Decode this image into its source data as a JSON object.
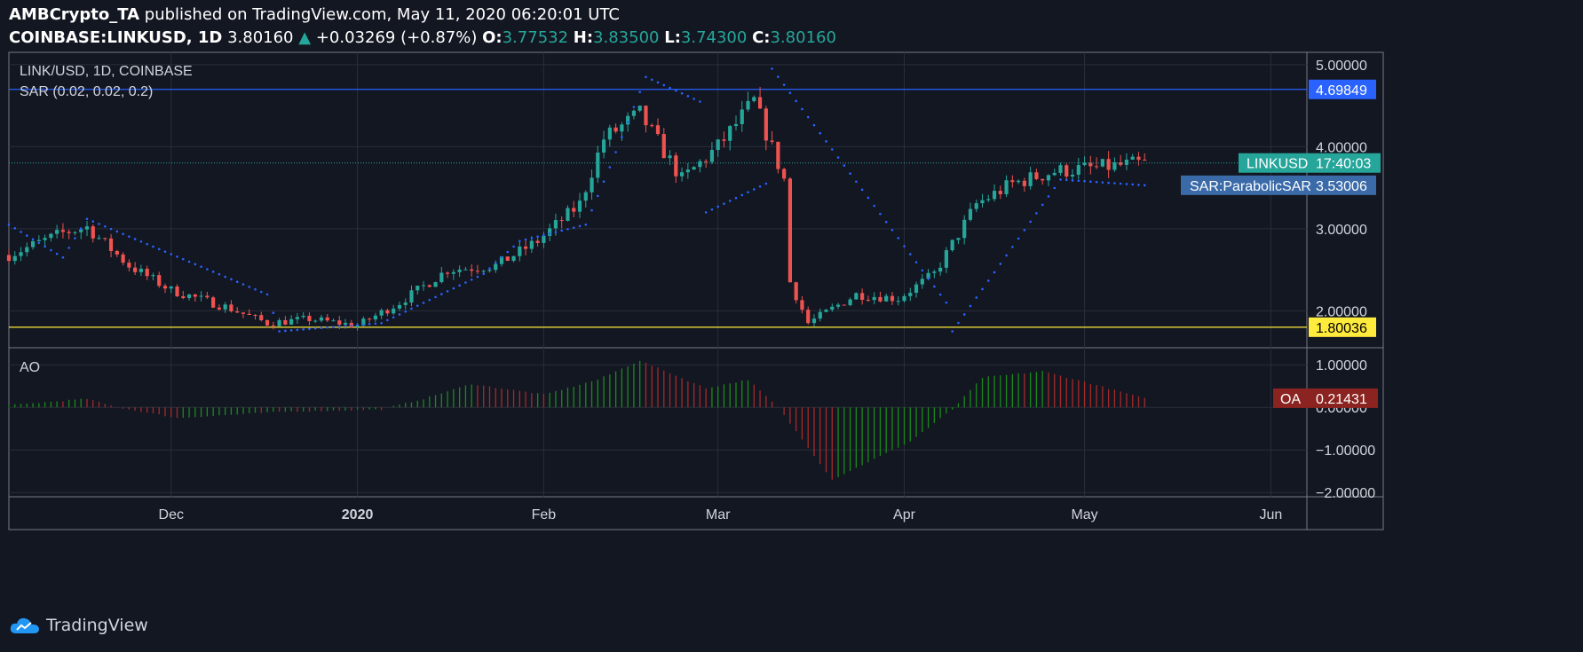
{
  "header": {
    "author": "AMBCrypto_TA",
    "published_text": "published on TradingView.com, May 11, 2020 06:20:01 UTC",
    "symbol": "COINBASE:LINKUSD, 1D",
    "last": "3.80160",
    "change": "+0.03269 (+0.87%)",
    "o_label": "O:",
    "o": "3.77532",
    "h_label": "H:",
    "h": "3.83500",
    "l_label": "L:",
    "l": "3.74300",
    "c_label": "C:",
    "c": "3.80160"
  },
  "footer": {
    "brand": "TradingView"
  },
  "colors": {
    "bg": "#131722",
    "grid": "#2a2e39",
    "border": "#787b86",
    "up": "#26a69a",
    "down": "#ef5350",
    "sar": "#2962ff",
    "resistance": "#2962ff",
    "support": "#ffeb3b",
    "ao_up": "#1b8a1b",
    "ao_down": "#a52a2a",
    "price_line": "#26a69a"
  },
  "chart_data": {
    "type": "candlestick",
    "pane_title": "LINK/USD, 1D, COINBASE",
    "indicator_label": "SAR (0.02, 0.02, 0.2)",
    "y_ticks": [
      "5.00000",
      "4.00000",
      "3.00000",
      "2.00000"
    ],
    "y_tick_values": [
      5,
      4,
      3,
      2
    ],
    "y_range": [
      1.55,
      5.15
    ],
    "x_ticks": [
      {
        "label": "Dec",
        "date": "2019-12-01"
      },
      {
        "label": "2020",
        "date": "2020-01-01",
        "bold": true
      },
      {
        "label": "Feb",
        "date": "2020-02-01"
      },
      {
        "label": "Mar",
        "date": "2020-03-01"
      },
      {
        "label": "Apr",
        "date": "2020-04-01"
      },
      {
        "label": "May",
        "date": "2020-05-01"
      },
      {
        "label": "Jun",
        "date": "2020-06-01"
      }
    ],
    "x_range": [
      "2019-11-04",
      "2020-06-07"
    ],
    "horizontal_levels": [
      {
        "value": 4.69849,
        "label": "4.69849",
        "color": "#2962ff"
      },
      {
        "value": 1.80036,
        "label": "1.80036",
        "color": "#ffeb3b"
      }
    ],
    "last_price": {
      "value": 3.8016,
      "name": "LINKUSD",
      "countdown": "17:40:03"
    },
    "sar_last": {
      "value": 3.53006,
      "name": "SAR:ParabolicSAR",
      "label": "3.53006"
    },
    "price_path": [
      {
        "date": "2019-11-04",
        "close": 2.68
      },
      {
        "date": "2019-11-13",
        "close": 2.95
      },
      {
        "date": "2019-11-17",
        "close": 3.02
      },
      {
        "date": "2019-11-24",
        "close": 2.55
      },
      {
        "date": "2019-12-01",
        "close": 2.25
      },
      {
        "date": "2019-12-10",
        "close": 2.05
      },
      {
        "date": "2019-12-17",
        "close": 1.85
      },
      {
        "date": "2019-12-24",
        "close": 1.9
      },
      {
        "date": "2020-01-01",
        "close": 1.82
      },
      {
        "date": "2020-01-08",
        "close": 2.1
      },
      {
        "date": "2020-01-16",
        "close": 2.5
      },
      {
        "date": "2020-01-24",
        "close": 2.55
      },
      {
        "date": "2020-01-31",
        "close": 2.85
      },
      {
        "date": "2020-02-07",
        "close": 3.3
      },
      {
        "date": "2020-02-11",
        "close": 4.1
      },
      {
        "date": "2020-02-17",
        "close": 4.4
      },
      {
        "date": "2020-02-24",
        "close": 3.6
      },
      {
        "date": "2020-03-01",
        "close": 4.0
      },
      {
        "date": "2020-03-07",
        "close": 4.55
      },
      {
        "date": "2020-03-12",
        "close": 3.6
      },
      {
        "date": "2020-03-13",
        "close": 2.35
      },
      {
        "date": "2020-03-16",
        "close": 1.85
      },
      {
        "date": "2020-03-24",
        "close": 2.2
      },
      {
        "date": "2020-03-31",
        "close": 2.15
      },
      {
        "date": "2020-04-06",
        "close": 2.45
      },
      {
        "date": "2020-04-13",
        "close": 3.3
      },
      {
        "date": "2020-04-19",
        "close": 3.55
      },
      {
        "date": "2020-04-26",
        "close": 3.7
      },
      {
        "date": "2020-05-04",
        "close": 3.75
      },
      {
        "date": "2020-05-11",
        "close": 3.8
      }
    ],
    "sar_path": [
      {
        "date": "2019-11-04",
        "value": 3.05
      },
      {
        "date": "2019-11-13",
        "value": 2.65
      },
      {
        "date": "2019-11-17",
        "value": 3.12
      },
      {
        "date": "2019-12-17",
        "value": 2.2
      },
      {
        "date": "2019-12-19",
        "value": 1.75
      },
      {
        "date": "2020-01-05",
        "value": 1.85
      },
      {
        "date": "2020-01-22",
        "value": 2.45
      },
      {
        "date": "2020-01-28",
        "value": 2.85
      },
      {
        "date": "2020-02-08",
        "value": 3.05
      },
      {
        "date": "2020-02-12",
        "value": 3.75
      },
      {
        "date": "2020-02-18",
        "value": 4.85
      },
      {
        "date": "2020-02-27",
        "value": 4.55
      },
      {
        "date": "2020-02-28",
        "value": 3.2
      },
      {
        "date": "2020-03-09",
        "value": 3.55
      },
      {
        "date": "2020-03-10",
        "value": 4.95
      },
      {
        "date": "2020-04-08",
        "value": 2.1
      },
      {
        "date": "2020-04-09",
        "value": 1.75
      },
      {
        "date": "2020-04-27",
        "value": 3.6
      },
      {
        "date": "2020-05-11",
        "value": 3.53
      }
    ],
    "ao": {
      "label": "AO",
      "y_ticks": [
        "1.00000",
        "0.00000",
        "−1.00000",
        "−2.00000"
      ],
      "y_tick_values": [
        1,
        0,
        -1,
        -2
      ],
      "y_range": [
        -2.1,
        1.4
      ],
      "last": {
        "name": "OA",
        "label": "0.21431",
        "value": 0.21431
      },
      "path": [
        {
          "date": "2019-11-04",
          "value": 0.05
        },
        {
          "date": "2019-11-17",
          "value": 0.2
        },
        {
          "date": "2019-11-22",
          "value": 0.0
        },
        {
          "date": "2019-12-02",
          "value": -0.25
        },
        {
          "date": "2019-12-20",
          "value": -0.1
        },
        {
          "date": "2020-01-05",
          "value": -0.05
        },
        {
          "date": "2020-01-12",
          "value": 0.2
        },
        {
          "date": "2020-01-20",
          "value": 0.55
        },
        {
          "date": "2020-02-01",
          "value": 0.3
        },
        {
          "date": "2020-02-10",
          "value": 0.65
        },
        {
          "date": "2020-02-17",
          "value": 1.1
        },
        {
          "date": "2020-02-28",
          "value": 0.45
        },
        {
          "date": "2020-03-06",
          "value": 0.65
        },
        {
          "date": "2020-03-11",
          "value": 0.0
        },
        {
          "date": "2020-03-20",
          "value": -1.7
        },
        {
          "date": "2020-04-02",
          "value": -0.8
        },
        {
          "date": "2020-04-09",
          "value": -0.05
        },
        {
          "date": "2020-04-14",
          "value": 0.7
        },
        {
          "date": "2020-04-24",
          "value": 0.85
        },
        {
          "date": "2020-05-01",
          "value": 0.6
        },
        {
          "date": "2020-05-11",
          "value": 0.21
        }
      ]
    }
  }
}
